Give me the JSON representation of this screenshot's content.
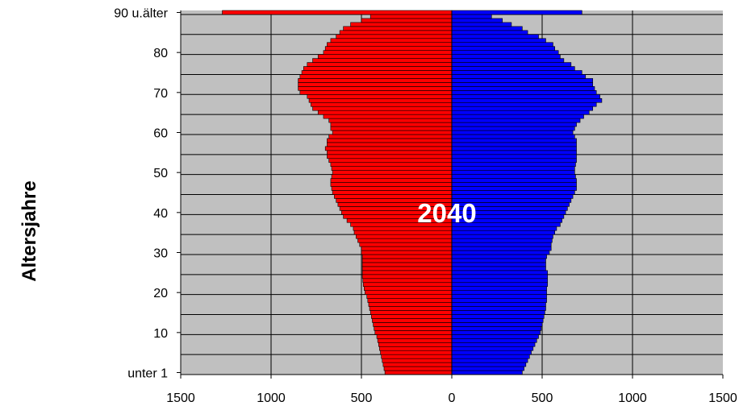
{
  "chart_data": {
    "type": "bar",
    "orientation": "horizontal",
    "subtype": "population-pyramid",
    "title": "",
    "annotation": "2040",
    "ylabel": "Altersjahre",
    "xlabel": "",
    "x_ticks": [
      "1500",
      "1000",
      "500",
      "0",
      "500",
      "1000",
      "1500"
    ],
    "y_tick_labels": [
      {
        "age": 0,
        "label": "unter 1"
      },
      {
        "age": 10,
        "label": "10"
      },
      {
        "age": 20,
        "label": "20"
      },
      {
        "age": 30,
        "label": "30"
      },
      {
        "age": 40,
        "label": "40"
      },
      {
        "age": 50,
        "label": "50"
      },
      {
        "age": 60,
        "label": "60"
      },
      {
        "age": 70,
        "label": "70"
      },
      {
        "age": 80,
        "label": "80"
      },
      {
        "age": 90,
        "label": "90 u.älter"
      }
    ],
    "xlim": [
      -1500,
      1500
    ],
    "ylim": [
      0,
      90
    ],
    "grid": true,
    "background_color": "#c0c0c0",
    "ages": [
      0,
      1,
      2,
      3,
      4,
      5,
      6,
      7,
      8,
      9,
      10,
      11,
      12,
      13,
      14,
      15,
      16,
      17,
      18,
      19,
      20,
      21,
      22,
      23,
      24,
      25,
      26,
      27,
      28,
      29,
      30,
      31,
      32,
      33,
      34,
      35,
      36,
      37,
      38,
      39,
      40,
      41,
      42,
      43,
      44,
      45,
      46,
      47,
      48,
      49,
      50,
      51,
      52,
      53,
      54,
      55,
      56,
      57,
      58,
      59,
      60,
      61,
      62,
      63,
      64,
      65,
      66,
      67,
      68,
      69,
      70,
      71,
      72,
      73,
      74,
      75,
      76,
      77,
      78,
      79,
      80,
      81,
      82,
      83,
      84,
      85,
      86,
      87,
      88,
      89,
      90
    ],
    "series": [
      {
        "side": "left",
        "color": "#ff0000",
        "values": [
          370,
          375,
          380,
          385,
          390,
          395,
          400,
          405,
          410,
          415,
          425,
          430,
          435,
          440,
          445,
          450,
          455,
          460,
          465,
          470,
          480,
          485,
          490,
          492,
          495,
          495,
          495,
          495,
          495,
          495,
          500,
          500,
          510,
          520,
          530,
          540,
          545,
          560,
          580,
          600,
          610,
          620,
          630,
          640,
          650,
          660,
          665,
          670,
          670,
          665,
          660,
          665,
          670,
          680,
          690,
          690,
          700,
          690,
          690,
          680,
          660,
          670,
          670,
          680,
          710,
          740,
          770,
          780,
          790,
          800,
          840,
          850,
          850,
          850,
          840,
          830,
          820,
          800,
          770,
          740,
          710,
          700,
          690,
          670,
          640,
          620,
          600,
          560,
          500,
          450,
          1270
        ]
      },
      {
        "side": "right",
        "color": "#0000ff",
        "values": [
          390,
          400,
          410,
          420,
          430,
          440,
          450,
          460,
          470,
          480,
          490,
          495,
          500,
          505,
          510,
          515,
          520,
          520,
          525,
          525,
          525,
          525,
          530,
          530,
          530,
          530,
          520,
          520,
          520,
          525,
          540,
          550,
          550,
          555,
          560,
          570,
          580,
          600,
          610,
          620,
          630,
          640,
          650,
          660,
          670,
          680,
          690,
          690,
          690,
          685,
          680,
          680,
          685,
          690,
          690,
          690,
          690,
          690,
          690,
          680,
          670,
          680,
          690,
          710,
          730,
          760,
          780,
          800,
          830,
          820,
          800,
          790,
          780,
          780,
          740,
          720,
          680,
          660,
          620,
          600,
          590,
          570,
          560,
          520,
          480,
          420,
          390,
          330,
          280,
          220,
          720
        ]
      }
    ]
  }
}
